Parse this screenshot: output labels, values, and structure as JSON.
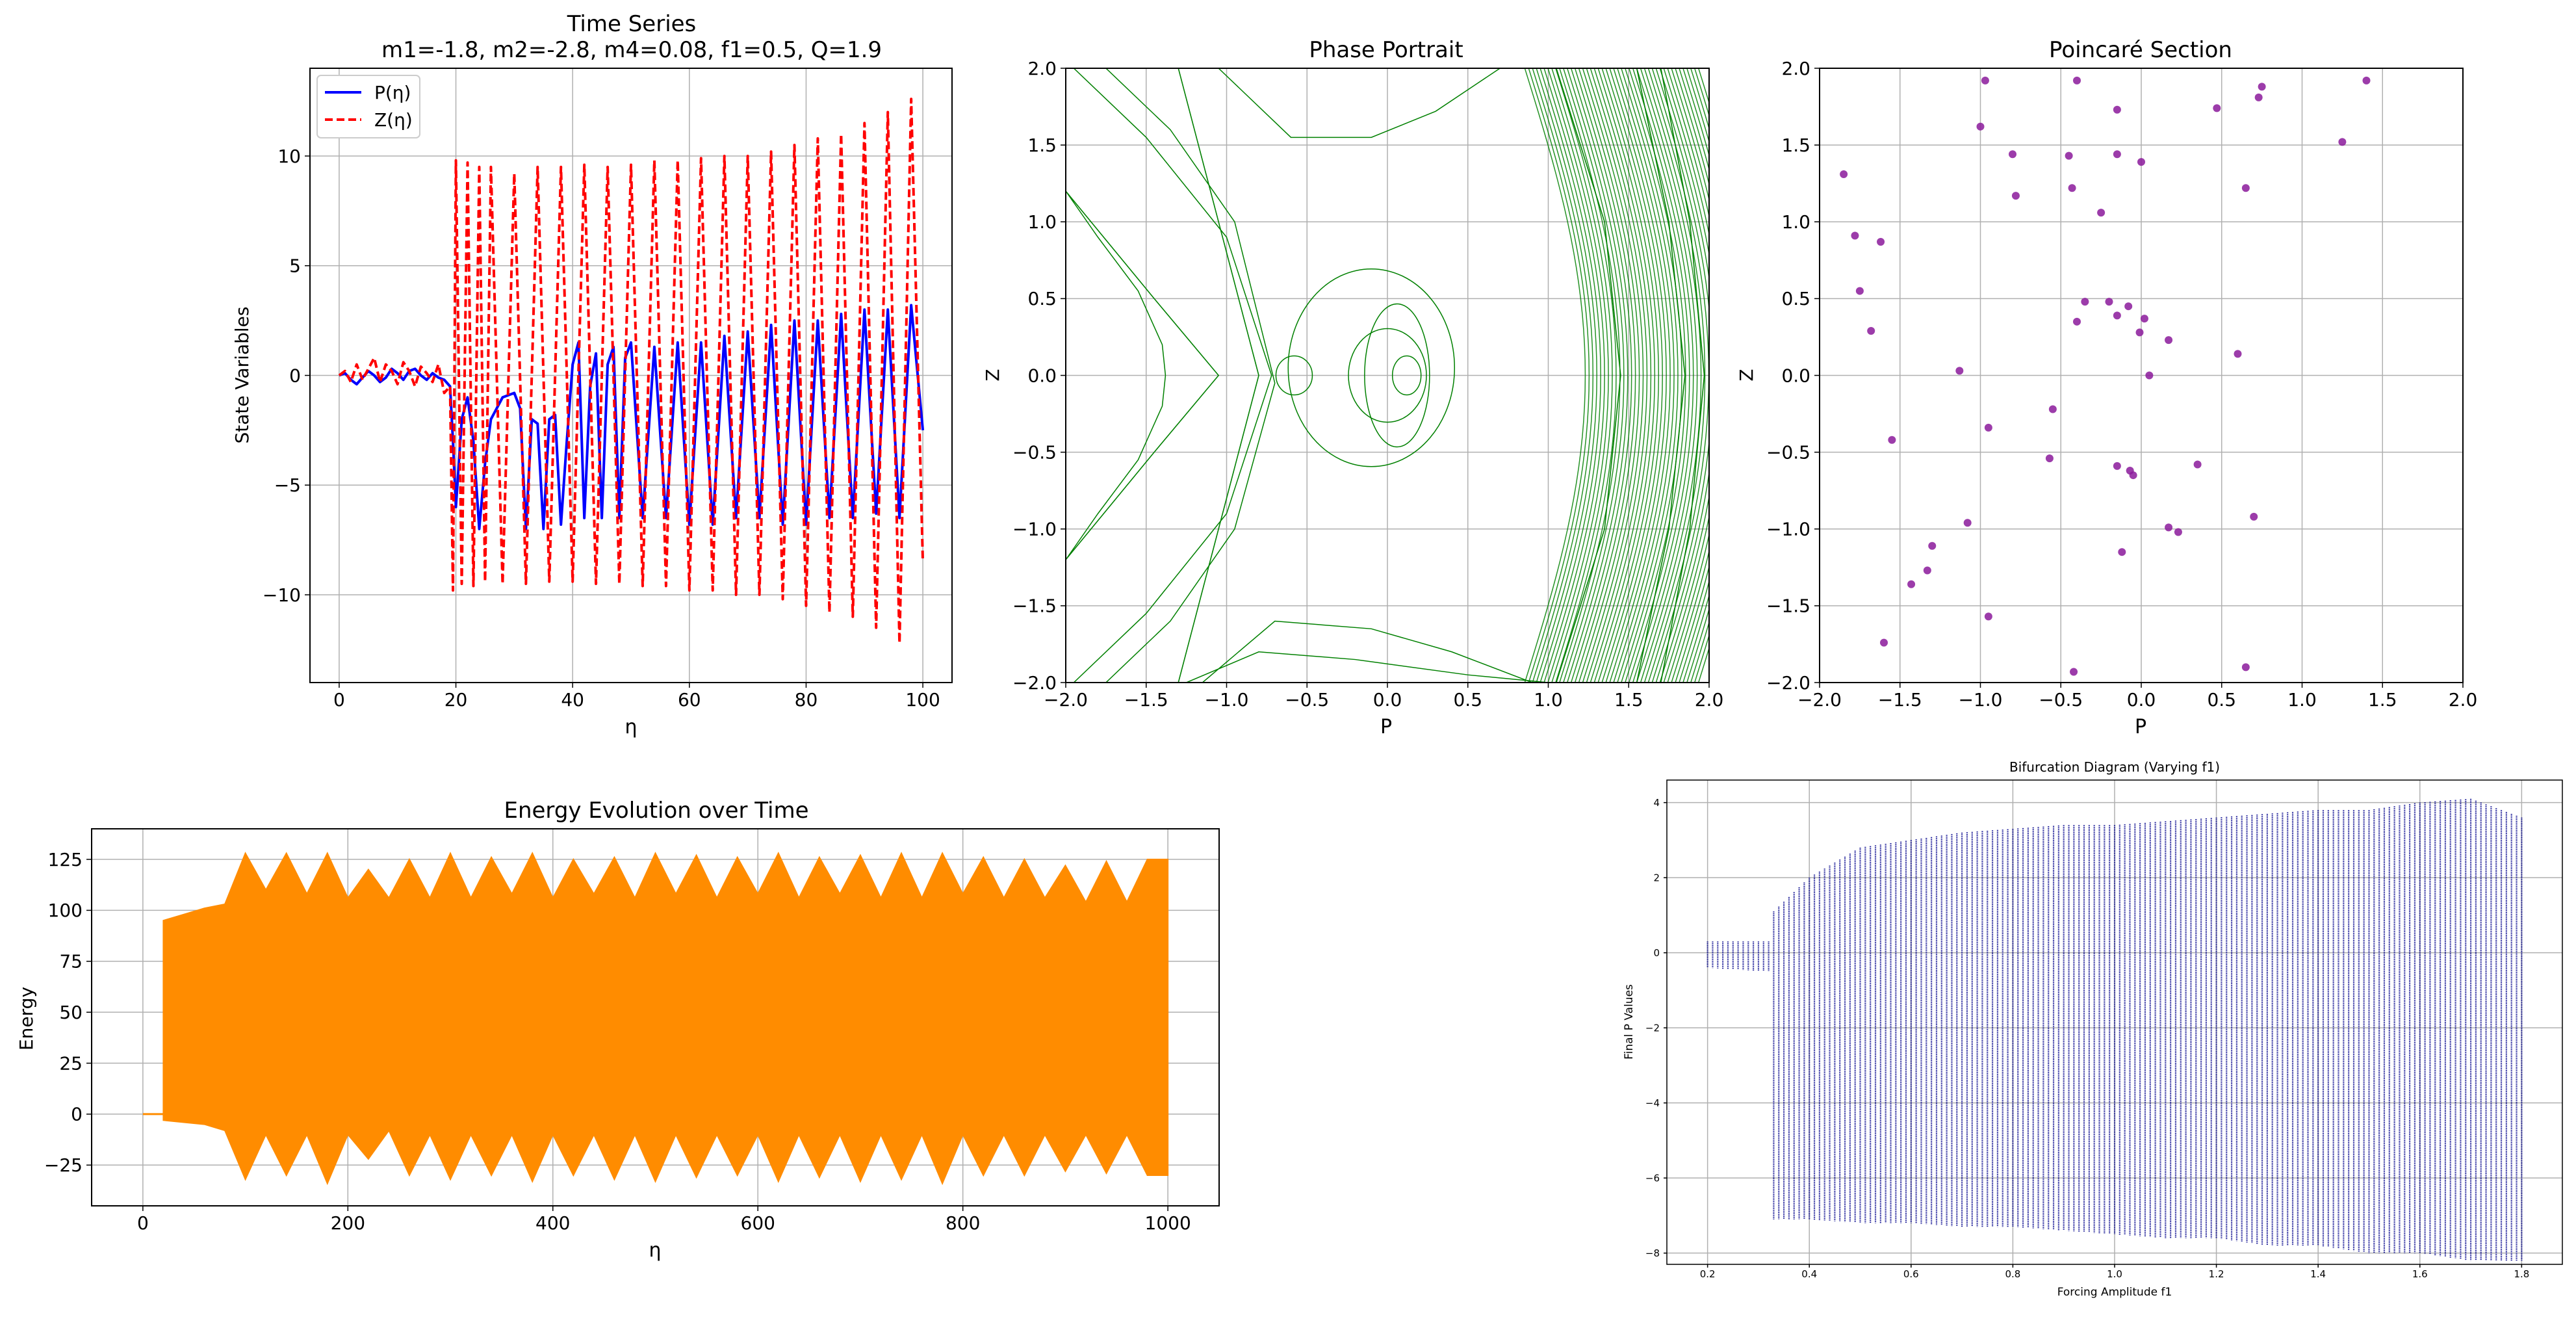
{
  "chart_data": [
    {
      "type": "line",
      "title": "Time Series",
      "subtitle": "m1=-1.8, m2=-2.8, m4=0.08, f1=0.5, Q=1.9",
      "xlabel": "η",
      "ylabel": "State Variables",
      "xlim": [
        -5,
        105
      ],
      "ylim": [
        -14,
        14
      ],
      "xticks": [
        "0",
        "20",
        "40",
        "60",
        "80",
        "100"
      ],
      "yticks": [
        "−10",
        "−5",
        "0",
        "5",
        "10"
      ],
      "grid": true,
      "legend": "top-left",
      "series": [
        {
          "name": "P(η)",
          "color": "#0000ff",
          "style": "solid",
          "x": [
            0,
            1,
            2,
            3,
            4,
            5,
            6,
            7,
            8,
            9,
            10,
            11,
            12,
            13,
            14,
            15,
            16,
            17,
            18,
            19,
            19.5,
            20,
            21,
            22,
            23,
            24,
            25,
            26,
            28,
            30,
            31,
            32,
            33,
            34,
            35,
            36,
            37,
            38,
            39,
            40,
            41,
            42,
            43,
            44,
            45,
            46,
            47,
            48,
            49,
            50,
            52,
            54,
            56,
            58,
            60,
            62,
            64,
            66,
            68,
            70,
            72,
            74,
            76,
            78,
            80,
            82,
            84,
            86,
            88,
            90,
            92,
            94,
            96,
            98,
            100
          ],
          "values": [
            0,
            0.1,
            -0.2,
            -0.4,
            -0.1,
            0.2,
            0,
            -0.3,
            -0.1,
            0.3,
            0.1,
            -0.2,
            0.2,
            0.3,
            0,
            -0.2,
            0.1,
            -0.1,
            -0.2,
            -0.5,
            -3,
            -6,
            -2,
            -1,
            -3,
            -7,
            -4,
            -2,
            -1,
            -0.8,
            -1.5,
            -7,
            -2,
            -2.2,
            -7,
            -2,
            -1.8,
            -6.8,
            -3,
            0.5,
            1.5,
            -6.5,
            -0.5,
            1,
            -6.5,
            0.5,
            1.3,
            -6.5,
            0.8,
            1.5,
            -6.5,
            1.3,
            -6.5,
            1.5,
            -6.8,
            1.5,
            -6.8,
            1.8,
            -6.5,
            2,
            -6.5,
            2.3,
            -6.8,
            2.5,
            -6.8,
            2.5,
            -6.5,
            2.8,
            -6.5,
            3,
            -6.3,
            3,
            -6.5,
            3.2,
            -2.5
          ]
        },
        {
          "name": "Z(η)",
          "color": "#ff0000",
          "style": "dashed",
          "x": [
            0,
            1,
            2,
            3,
            4,
            5,
            6,
            7,
            8,
            9,
            10,
            11,
            12,
            13,
            14,
            15,
            16,
            17,
            18,
            19,
            19.5,
            20,
            21,
            22,
            23,
            24,
            25,
            26,
            28,
            30,
            32,
            34,
            36,
            38,
            40,
            42,
            44,
            46,
            48,
            50,
            52,
            54,
            56,
            58,
            60,
            62,
            64,
            66,
            68,
            70,
            72,
            74,
            76,
            78,
            80,
            82,
            84,
            86,
            88,
            90,
            92,
            94,
            96,
            98,
            100
          ],
          "values": [
            0,
            0.2,
            -0.3,
            0.5,
            -0.2,
            0.3,
            0.8,
            -0.3,
            0.5,
            0.2,
            -0.4,
            0.6,
            0.2,
            -0.5,
            0.4,
            0.1,
            -0.3,
            0.5,
            -0.8,
            -0.5,
            -9.8,
            9.8,
            -9.5,
            9.7,
            -9.6,
            9.5,
            -9.4,
            9.5,
            -9.5,
            9.2,
            -9.5,
            9.5,
            -9.4,
            9.5,
            -9.4,
            9.6,
            -9.5,
            9.5,
            -9.5,
            9.6,
            -9.6,
            9.8,
            -9.6,
            9.8,
            -9.8,
            9.9,
            -9.8,
            10,
            -10,
            10,
            -10,
            10.2,
            -10.2,
            10.5,
            -10.5,
            10.8,
            -10.8,
            11,
            -11,
            11.5,
            -11.5,
            12,
            -12.2,
            12.6,
            -8.5
          ]
        }
      ]
    },
    {
      "type": "line",
      "title": "Phase Portrait",
      "xlabel": "P",
      "ylabel": "Z",
      "xlim": [
        -2.0,
        2.0
      ],
      "ylim": [
        -2.0,
        2.0
      ],
      "xticks": [
        "−2.0",
        "−1.5",
        "−1.0",
        "−0.5",
        "0.0",
        "0.5",
        "1.0",
        "1.5",
        "2.0"
      ],
      "yticks": [
        "−2.0",
        "−1.5",
        "−1.0",
        "−0.5",
        "0.0",
        "0.5",
        "1.0",
        "1.5",
        "2.0"
      ],
      "grid": true,
      "color": "#008000",
      "series": [
        {
          "x": [
            1.55,
            1.75,
            1.85,
            1.75,
            1.55
          ],
          "values": [
            2.0,
            1.0,
            0.0,
            -1.0,
            -2.0
          ]
        },
        {
          "x": [
            1.7,
            1.88,
            1.97,
            1.88,
            1.7
          ],
          "values": [
            2.0,
            1.0,
            0.0,
            -1.0,
            -2.0
          ]
        },
        {
          "x": [
            1.05,
            1.35,
            1.45,
            1.35,
            1.05
          ],
          "values": [
            2.0,
            1.0,
            0.0,
            -1.0,
            -2.0
          ]
        },
        {
          "x": [
            -1.3,
            -1.0,
            -0.8,
            -1.0,
            -1.3
          ],
          "values": [
            2.0,
            0.8,
            0.0,
            -0.8,
            -2.0
          ]
        },
        {
          "x": [
            -2.0,
            -1.45,
            -1.05,
            -1.45,
            -2.0
          ],
          "values": [
            1.2,
            0.5,
            0.0,
            -0.5,
            -1.2
          ]
        }
      ]
    },
    {
      "type": "scatter",
      "title": "Poincaré Section",
      "xlabel": "P",
      "ylabel": "Z",
      "xlim": [
        -2.0,
        2.0
      ],
      "ylim": [
        -2.0,
        2.0
      ],
      "xticks": [
        "−2.0",
        "−1.5",
        "−1.0",
        "−0.5",
        "0.0",
        "0.5",
        "1.0",
        "1.5",
        "2.0"
      ],
      "yticks": [
        "−2.0",
        "−1.5",
        "−1.0",
        "−0.5",
        "0.0",
        "0.5",
        "1.0",
        "1.5",
        "2.0"
      ],
      "grid": true,
      "color": "#8b1a9b",
      "x": [
        -0.97,
        -0.4,
        -0.15,
        0.75,
        1.4,
        -1.85,
        -1.0,
        -0.8,
        -0.45,
        -0.15,
        0.0,
        0.47,
        0.73,
        1.25,
        -0.43,
        -0.78,
        -0.25,
        0.65,
        -1.78,
        -1.62,
        -0.35,
        -0.2,
        -0.08,
        -0.4,
        -0.15,
        0.02,
        -1.75,
        -1.68,
        -0.01,
        0.17,
        0.6,
        -1.13,
        0.05,
        -0.55,
        -1.55,
        -0.95,
        -0.57,
        -0.15,
        0.35,
        -0.07,
        -0.05,
        0.7,
        -1.08,
        0.17,
        0.23,
        -1.3,
        -0.12,
        -1.33,
        -1.43,
        -0.95,
        -1.6,
        0.65,
        -0.42
      ],
      "y": [
        1.92,
        1.92,
        1.73,
        1.88,
        1.92,
        1.31,
        1.62,
        1.44,
        1.43,
        1.44,
        1.39,
        1.74,
        1.81,
        1.52,
        1.22,
        1.17,
        1.06,
        1.22,
        0.91,
        0.87,
        0.48,
        0.48,
        0.45,
        0.35,
        0.39,
        0.37,
        0.55,
        0.29,
        0.28,
        0.23,
        0.14,
        0.03,
        0.0,
        -0.22,
        -0.42,
        -0.34,
        -0.54,
        -0.59,
        -0.58,
        -0.62,
        -0.65,
        -0.92,
        -0.96,
        -0.99,
        -1.02,
        -1.11,
        -1.15,
        -1.27,
        -1.36,
        -1.57,
        -1.74,
        -1.9,
        -1.93
      ]
    },
    {
      "type": "line",
      "title": "Energy Evolution over Time",
      "xlabel": "η",
      "ylabel": "Energy",
      "xlim": [
        -50,
        1050
      ],
      "ylim": [
        -45,
        140
      ],
      "xticks": [
        "0",
        "200",
        "400",
        "600",
        "800",
        "1000"
      ],
      "yticks": [
        "−25",
        "0",
        "25",
        "50",
        "75",
        "100",
        "125"
      ],
      "grid": true,
      "color": "#ff8c00",
      "x": [
        0,
        20,
        40,
        60,
        80,
        100,
        120,
        140,
        160,
        180,
        200,
        220,
        240,
        260,
        280,
        300,
        320,
        340,
        360,
        380,
        400,
        420,
        440,
        460,
        480,
        500,
        520,
        540,
        560,
        580,
        600,
        620,
        640,
        660,
        680,
        700,
        720,
        740,
        760,
        780,
        800,
        820,
        840,
        860,
        880,
        900,
        920,
        940,
        960,
        980,
        1000
      ],
      "upper": [
        0,
        95,
        98,
        101,
        103,
        128,
        110,
        128,
        108,
        128,
        106,
        120,
        106,
        125,
        106,
        128,
        106,
        126,
        108,
        128,
        106,
        125,
        108,
        126,
        106,
        128,
        108,
        127,
        106,
        126,
        108,
        128,
        106,
        126,
        108,
        127,
        106,
        128,
        106,
        128,
        108,
        126,
        106,
        125,
        106,
        122,
        104,
        124,
        104,
        125,
        125
      ],
      "lower": [
        0,
        -3,
        -4,
        -5,
        -8,
        -32,
        -10,
        -30,
        -10,
        -34,
        -10,
        -22,
        -8,
        -30,
        -10,
        -32,
        -10,
        -30,
        -10,
        -33,
        -10,
        -30,
        -10,
        -32,
        -10,
        -33,
        -10,
        -31,
        -10,
        -30,
        -10,
        -33,
        -10,
        -31,
        -10,
        -33,
        -10,
        -32,
        -10,
        -34,
        -10,
        -30,
        -10,
        -30,
        -10,
        -28,
        -10,
        -29,
        -10,
        -30,
        -30
      ]
    },
    {
      "type": "scatter",
      "title": "Bifurcation Diagram (Varying f1)",
      "xlabel": "Forcing Amplitude f1",
      "ylabel": "Final P Values",
      "xlim": [
        0.12,
        1.88
      ],
      "ylim": [
        -8.3,
        4.6
      ],
      "xticks": [
        "0.2",
        "0.4",
        "0.6",
        "0.8",
        "1.0",
        "1.2",
        "1.4",
        "1.6",
        "1.8"
      ],
      "yticks": [
        "−8",
        "−6",
        "−4",
        "−2",
        "0",
        "2",
        "4"
      ],
      "grid": true,
      "color": "#00008b",
      "x": [
        0.2,
        0.32,
        0.33,
        0.4,
        0.5,
        0.6,
        0.7,
        0.8,
        0.9,
        1.0,
        1.1,
        1.2,
        1.3,
        1.4,
        1.5,
        1.6,
        1.7,
        1.8
      ],
      "min": [
        -0.4,
        -0.5,
        -7.1,
        -7.1,
        -7.2,
        -7.2,
        -7.3,
        -7.3,
        -7.4,
        -7.5,
        -7.6,
        -7.6,
        -7.8,
        -7.8,
        -8.0,
        -8.0,
        -8.2,
        -8.2
      ],
      "max": [
        0.3,
        0.3,
        1.1,
        2.0,
        2.8,
        3.0,
        3.2,
        3.3,
        3.4,
        3.4,
        3.5,
        3.6,
        3.7,
        3.8,
        3.8,
        4.0,
        4.1,
        3.6
      ]
    }
  ]
}
